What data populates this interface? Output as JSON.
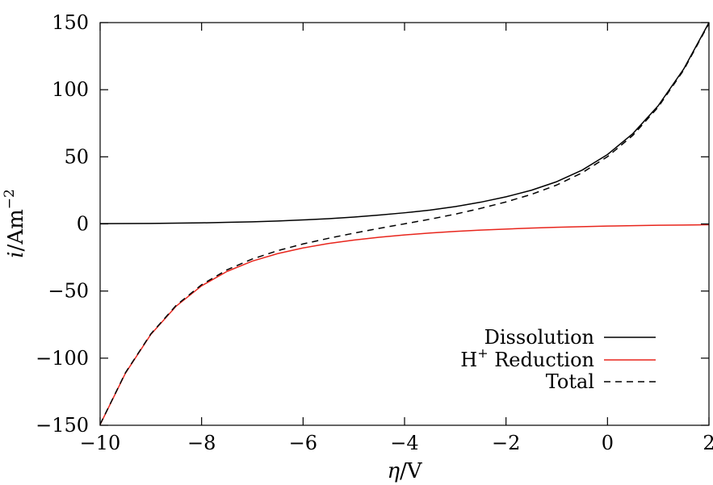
{
  "chart_data": {
    "type": "line",
    "title": "",
    "xlabel": {
      "symbol": "η",
      "unit": "/V"
    },
    "ylabel": {
      "symbol": "i",
      "unit": "/Am",
      "exponent": "−2"
    },
    "xlim": [
      -10,
      2
    ],
    "ylim": [
      -150,
      150
    ],
    "xticks": [
      -10,
      -8,
      -6,
      -4,
      -2,
      0,
      2
    ],
    "yticks": [
      -150,
      -100,
      -50,
      0,
      50,
      100,
      150
    ],
    "xtick_labels": [
      "−10",
      "−8",
      "−6",
      "−4",
      "−2",
      "0",
      "2"
    ],
    "ytick_labels": [
      "−150",
      "−100",
      "−50",
      "0",
      "50",
      "100",
      "150"
    ],
    "grid": false,
    "legend_position": "bottom-right",
    "x": [
      -10,
      -9.5,
      -9,
      -8.5,
      -8,
      -7.5,
      -7,
      -6.5,
      -6,
      -5.5,
      -5,
      -4.5,
      -4,
      -3.5,
      -3,
      -2.5,
      -2,
      -1.5,
      -1,
      -0.5,
      0,
      0.5,
      1,
      1.5,
      2
    ],
    "series": [
      {
        "name": "Dissolution",
        "name_parts": {
          "sup": "",
          "text": "Dissolution"
        },
        "color": "#000000",
        "dash": "solid",
        "values": [
          0.2,
          0.3,
          0.4,
          0.6,
          0.8,
          1.2,
          1.6,
          2.2,
          3.0,
          3.9,
          5.1,
          6.6,
          8.3,
          10.3,
          12.9,
          16.2,
          20.2,
          25.1,
          31.5,
          40.1,
          51.7,
          67.3,
          88.1,
          115.3,
          150.0
        ]
      },
      {
        "name": "H+ Reduction",
        "name_parts": {
          "sup": "+",
          "text": "H",
          "rest": " Reduction"
        },
        "color": "#e8251c",
        "dash": "solid",
        "values": [
          -149.5,
          -111.1,
          -82.3,
          -61.2,
          -46.1,
          -35.4,
          -27.7,
          -22.1,
          -17.9,
          -14.6,
          -12.0,
          -9.9,
          -8.2,
          -6.8,
          -5.6,
          -4.6,
          -3.8,
          -3.1,
          -2.5,
          -2.0,
          -1.6,
          -1.3,
          -1.0,
          -0.8,
          -0.6
        ]
      },
      {
        "name": "Total",
        "name_parts": {
          "sup": "",
          "text": "Total"
        },
        "color": "#000000",
        "dash": "dashed",
        "values": [
          -149.3,
          -110.8,
          -81.9,
          -60.6,
          -45.3,
          -34.2,
          -26.1,
          -19.9,
          -14.9,
          -10.7,
          -6.9,
          -3.3,
          0.1,
          3.5,
          7.3,
          11.6,
          16.4,
          22.0,
          29.0,
          38.1,
          50.1,
          66.0,
          87.1,
          114.5,
          149.4
        ]
      }
    ]
  }
}
